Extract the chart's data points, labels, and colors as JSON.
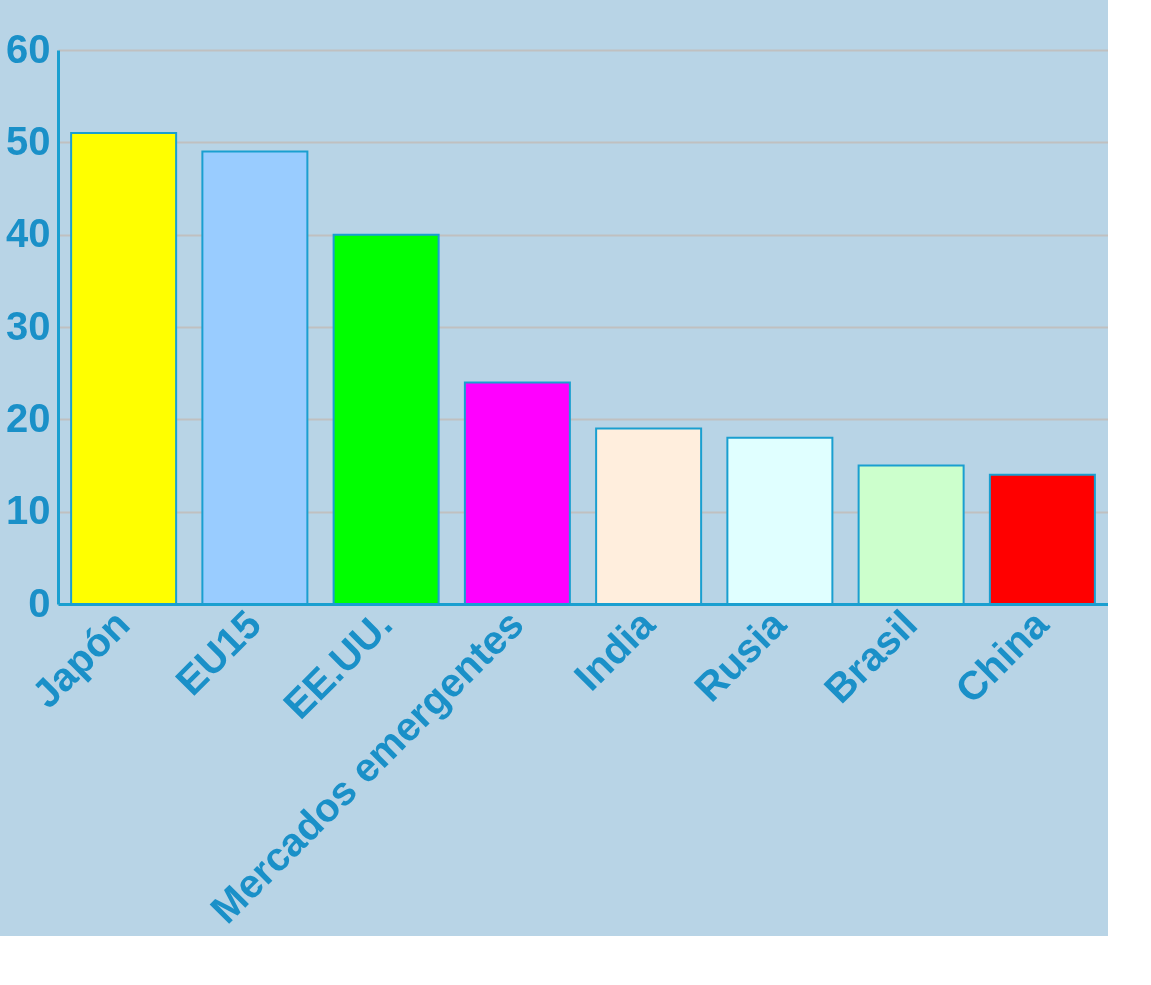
{
  "chart_data": {
    "type": "bar",
    "categories": [
      "Japón",
      "EU15",
      "EE.UU.",
      "Mercados emergentes",
      "India",
      "Rusia",
      "Brasil",
      "China"
    ],
    "values": [
      51,
      49,
      40,
      24,
      19,
      18,
      15,
      14
    ],
    "colors": [
      "#ffff00",
      "#99ccff",
      "#00ff00",
      "#ff00ff",
      "#ffeedd",
      "#e0ffff",
      "#ccffcc",
      "#ff0000"
    ],
    "ylim": [
      0,
      60
    ],
    "yticks": [
      0,
      10,
      20,
      30,
      40,
      50,
      60
    ],
    "grid": "y"
  }
}
